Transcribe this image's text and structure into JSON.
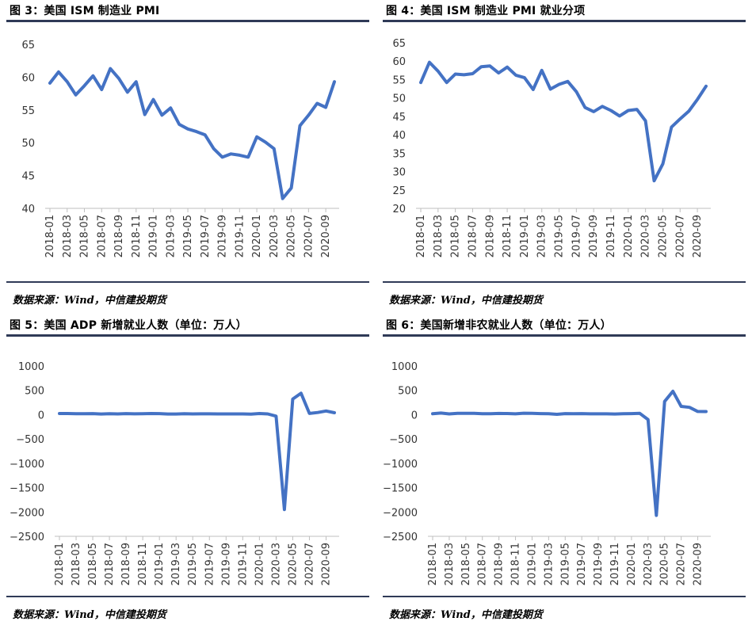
{
  "panels": [
    {
      "title": "图 3：美国 ISM 制造业 PMI",
      "source": "数据来源：Wind，中信建投期货",
      "chart_data": {
        "type": "line",
        "title": "图 3：美国 ISM 制造业 PMI",
        "xlabel": "",
        "ylabel": "",
        "ylim": [
          40,
          65
        ],
        "yticks": [
          40,
          45,
          50,
          55,
          60,
          65
        ],
        "ytick_labels": [
          "40",
          "45",
          "50",
          "55",
          "60",
          "65"
        ],
        "grid": false,
        "color": "#4472C4",
        "xtick_labels": [
          "2018-01",
          "2018-03",
          "2018-05",
          "2018-07",
          "2018-09",
          "2018-11",
          "2019-01",
          "2019-03",
          "2019-05",
          "2019-07",
          "2019-09",
          "2019-11",
          "2020-01",
          "2020-03",
          "2020-05",
          "2020-07",
          "2020-09"
        ],
        "series": [
          {
            "values": [
              59.1,
              60.8,
              59.3,
              57.3,
              58.7,
              60.2,
              58.1,
              61.3,
              59.8,
              57.7,
              59.3,
              54.3,
              56.6,
              54.2,
              55.3,
              52.8,
              52.1,
              51.7,
              51.2,
              49.1,
              47.8,
              48.3,
              48.1,
              47.8,
              50.9,
              50.1,
              49.1,
              41.5,
              43.1,
              52.6,
              54.2,
              56.0,
              55.4,
              59.3
            ]
          }
        ]
      }
    },
    {
      "title": "图 4：美国 ISM 制造业 PMI 就业分项",
      "source": "数据来源：Wind，中信建投期货",
      "chart_data": {
        "type": "line",
        "title": "图 4：美国 ISM 制造业 PMI 就业分项",
        "xlabel": "",
        "ylabel": "",
        "ylim": [
          20,
          65
        ],
        "yticks": [
          20,
          25,
          30,
          35,
          40,
          45,
          50,
          55,
          60,
          65
        ],
        "ytick_labels": [
          "20",
          "25",
          "30",
          "35",
          "40",
          "45",
          "50",
          "55",
          "60",
          "65"
        ],
        "grid": false,
        "color": "#4472C4",
        "xtick_labels": [
          "2018-01",
          "2018-03",
          "2018-05",
          "2018-07",
          "2018-09",
          "2018-11",
          "2019-01",
          "2019-03",
          "2019-05",
          "2019-07",
          "2019-09",
          "2019-11",
          "2020-01",
          "2020-03",
          "2020-05",
          "2020-07",
          "2020-09"
        ],
        "series": [
          {
            "values": [
              54.2,
              59.7,
              57.3,
              54.2,
              56.5,
              56.3,
              56.6,
              58.5,
              58.7,
              56.8,
              58.4,
              56.2,
              55.5,
              52.3,
              57.5,
              52.4,
              53.7,
              54.5,
              51.7,
              47.4,
              46.3,
              47.7,
              46.6,
              45.1,
              46.6,
              46.9,
              43.8,
              27.5,
              32.1,
              42.1,
              44.3,
              46.4,
              49.6,
              53.2
            ]
          }
        ]
      }
    },
    {
      "title": "图 5：美国 ADP 新增就业人数（单位：万人）",
      "source": "数据来源：Wind，中信建投期货",
      "chart_data": {
        "type": "line",
        "title": "图 5：美国 ADP 新增就业人数（单位：万人）",
        "xlabel": "",
        "ylabel": "",
        "ylim": [
          -2500,
          1000
        ],
        "yticks": [
          -2500,
          -2000,
          -1500,
          -1000,
          -500,
          0,
          500,
          1000
        ],
        "ytick_labels": [
          "−2500",
          "−2000",
          "−1500",
          "−1000",
          "−500",
          "0",
          "500",
          "1000"
        ],
        "grid": false,
        "color": "#4472C4",
        "xtick_labels": [
          "2018-01",
          "2018-03",
          "2018-05",
          "2018-07",
          "2018-09",
          "2018-11",
          "2019-01",
          "2019-03",
          "2019-05",
          "2019-07",
          "2019-09",
          "2019-11",
          "2020-01",
          "2020-03",
          "2020-05",
          "2020-07",
          "2020-09"
        ],
        "series": [
          {
            "values": [
              24,
              23,
              20,
              20,
              22,
              14,
              20,
              15,
              22,
              16,
              18,
              23,
              21,
              14,
              14,
              20,
              15,
              17,
              16,
              15,
              15,
              15,
              15,
              12,
              24,
              15,
              -30,
              -1950,
              320,
              440,
              25,
              45,
              75,
              40
            ]
          }
        ]
      }
    },
    {
      "title": "图 6：美国新增非农就业人数（单位：万人）",
      "source": "数据来源：Wind，中信建投期货",
      "chart_data": {
        "type": "line",
        "title": "图 6：美国新增非农就业人数（单位：万人）",
        "xlabel": "",
        "ylabel": "",
        "ylim": [
          -2500,
          1000
        ],
        "yticks": [
          -2500,
          -2000,
          -1500,
          -1000,
          -500,
          0,
          500,
          1000
        ],
        "ytick_labels": [
          "−2500",
          "−2000",
          "−1500",
          "−1000",
          "−500",
          "0",
          "500",
          "1000"
        ],
        "grid": false,
        "color": "#4472C4",
        "xtick_labels": [
          "2018-01",
          "2018-03",
          "2018-05",
          "2018-07",
          "2018-09",
          "2018-11",
          "2019-01",
          "2019-03",
          "2019-05",
          "2019-07",
          "2019-09",
          "2019-11",
          "2020-01",
          "2020-03",
          "2020-05",
          "2020-07",
          "2020-09"
        ],
        "series": [
          {
            "values": [
              18,
              33,
              15,
              27,
              26,
              28,
              20,
              18,
              25,
              23,
              17,
              30,
              27,
              22,
              19,
              7,
              22,
              20,
              22,
              17,
              16,
              16,
              13,
              19,
              21,
              27,
              -100,
              -2070,
              270,
              480,
              170,
              150,
              66,
              64
            ]
          }
        ]
      }
    }
  ]
}
